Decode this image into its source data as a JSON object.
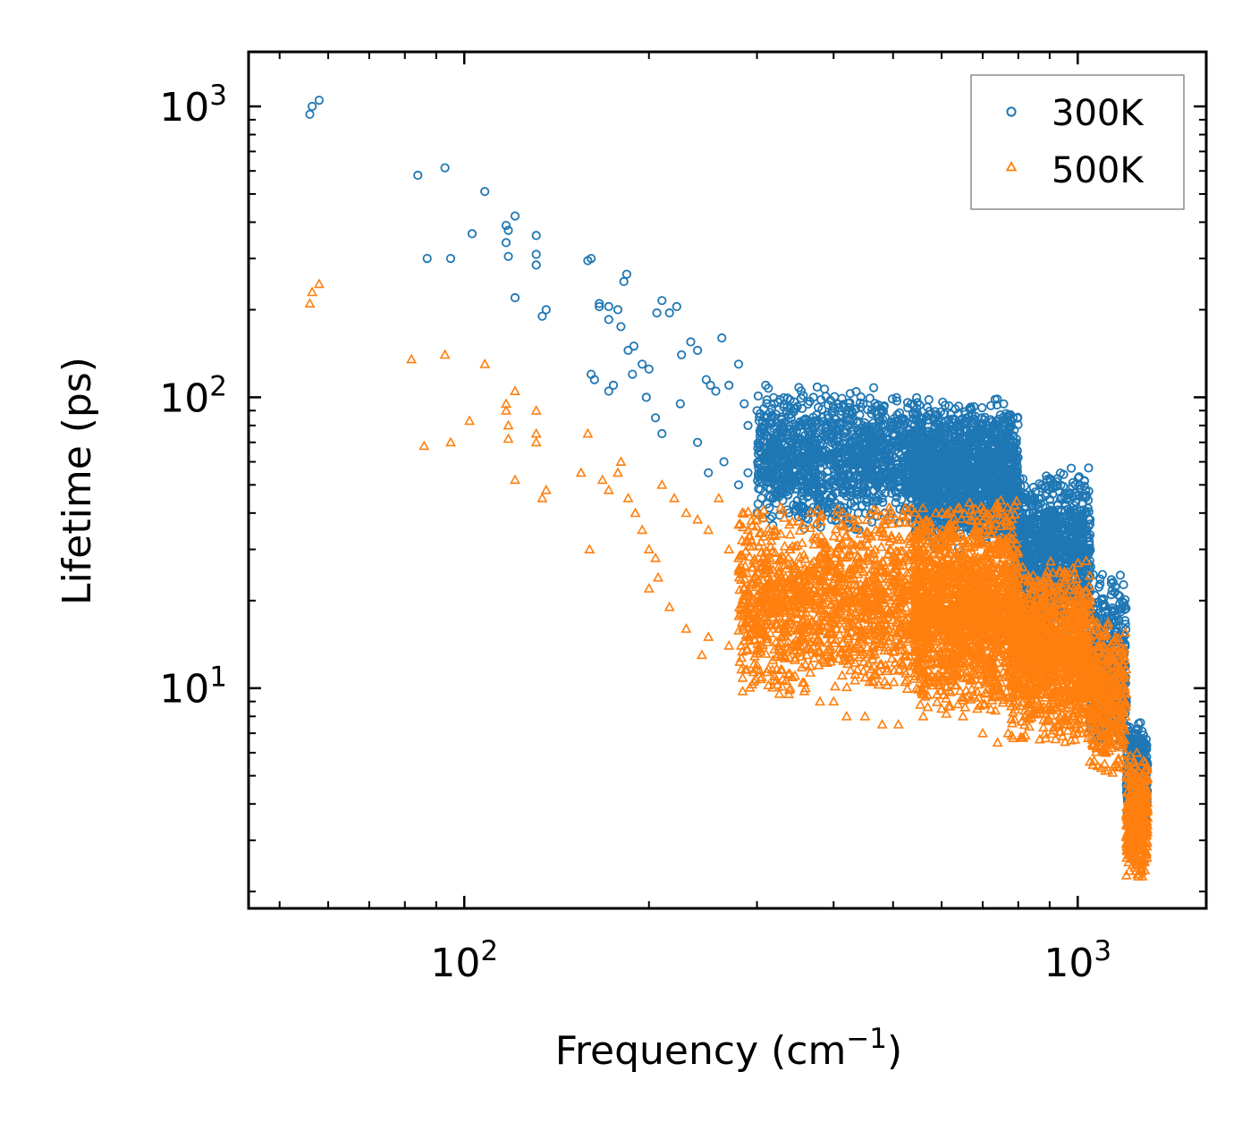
{
  "chart_data": {
    "type": "scatter",
    "xscale": "log",
    "yscale": "log",
    "xlim": [
      44.5,
      1620
    ],
    "ylim": [
      1.75,
      1540
    ],
    "xlabel": {
      "main": "Frequency (cm",
      "sup": "−1",
      "close": ")"
    },
    "ylabel": "Lifetime (ps)",
    "x_ticks": [
      {
        "value": 100,
        "base": "10",
        "exp": "2"
      },
      {
        "value": 1000,
        "base": "10",
        "exp": "3"
      }
    ],
    "y_ticks": [
      {
        "value": 10,
        "base": "10",
        "exp": "1"
      },
      {
        "value": 100,
        "base": "10",
        "exp": "2"
      },
      {
        "value": 1000,
        "base": "10",
        "exp": "3"
      }
    ],
    "legend": {
      "position": "top-right"
    },
    "series": [
      {
        "name": "300K",
        "marker": "circle",
        "color": "#1f77b4",
        "points": [
          [
            56,
            940
          ],
          [
            56.5,
            1000
          ],
          [
            58,
            1050
          ],
          [
            84,
            580
          ],
          [
            93,
            615
          ],
          [
            87,
            300
          ],
          [
            95,
            300
          ],
          [
            103,
            365
          ],
          [
            108,
            510
          ],
          [
            117,
            340
          ],
          [
            117,
            390
          ],
          [
            118,
            375
          ],
          [
            118,
            305
          ],
          [
            121,
            420
          ],
          [
            121,
            220
          ],
          [
            131,
            360
          ],
          [
            131,
            310
          ],
          [
            131,
            285
          ],
          [
            134,
            190
          ],
          [
            136,
            200
          ],
          [
            159,
            295
          ],
          [
            161,
            300
          ],
          [
            166,
            210
          ],
          [
            166,
            205
          ],
          [
            172,
            185
          ],
          [
            172,
            205
          ],
          [
            180,
            175
          ],
          [
            178,
            200
          ],
          [
            185,
            145
          ],
          [
            182,
            250
          ],
          [
            184,
            265
          ],
          [
            189,
            150
          ],
          [
            195,
            130
          ],
          [
            200,
            125
          ],
          [
            206,
            195
          ],
          [
            210,
            215
          ],
          [
            216,
            195
          ],
          [
            222,
            205
          ],
          [
            226,
            140
          ],
          [
            234,
            155
          ],
          [
            240,
            145
          ],
          [
            248,
            115
          ],
          [
            252,
            110
          ],
          [
            257,
            105
          ],
          [
            263,
            160
          ],
          [
            270,
            110
          ],
          [
            280,
            130
          ],
          [
            286,
            95
          ],
          [
            290,
            80
          ],
          [
            300,
            90
          ],
          [
            310,
            110
          ],
          [
            320,
            95
          ],
          [
            330,
            80
          ],
          [
            340,
            70
          ],
          [
            350,
            60
          ],
          [
            161,
            120
          ],
          [
            163,
            115
          ],
          [
            172,
            105
          ],
          [
            175,
            110
          ],
          [
            188,
            120
          ],
          [
            198,
            100
          ],
          [
            205,
            85
          ],
          [
            210,
            75
          ],
          [
            225,
            95
          ],
          [
            240,
            70
          ],
          [
            250,
            55
          ],
          [
            265,
            60
          ],
          [
            280,
            50
          ],
          [
            290,
            55
          ],
          [
            305,
            45
          ],
          [
            320,
            50
          ],
          [
            340,
            48
          ],
          [
            360,
            40
          ],
          [
            380,
            45
          ],
          [
            400,
            42
          ],
          [
            420,
            38
          ],
          [
            440,
            35
          ],
          [
            460,
            40
          ],
          [
            480,
            45
          ],
          [
            500,
            55
          ]
        ],
        "bands": [
          {
            "x0": 300,
            "x1": 560,
            "ymin": 35,
            "ymax": 110,
            "n": 1300
          },
          {
            "x0": 540,
            "x1": 800,
            "ymin": 30,
            "ymax": 100,
            "n": 1500
          },
          {
            "x0": 780,
            "x1": 1050,
            "ymin": 15,
            "ymax": 58,
            "n": 1000
          },
          {
            "x0": 1040,
            "x1": 1200,
            "ymin": 6,
            "ymax": 26,
            "n": 400
          },
          {
            "x0": 1200,
            "x1": 1300,
            "ymin": 3.2,
            "ymax": 8,
            "n": 350
          }
        ]
      },
      {
        "name": "500K",
        "marker": "triangle",
        "color": "#ff7f0e",
        "points": [
          [
            56,
            210
          ],
          [
            56.5,
            230
          ],
          [
            58,
            245
          ],
          [
            82,
            135
          ],
          [
            93,
            140
          ],
          [
            86,
            68
          ],
          [
            95,
            70
          ],
          [
            102,
            83
          ],
          [
            108,
            130
          ],
          [
            117,
            90
          ],
          [
            117,
            95
          ],
          [
            118,
            80
          ],
          [
            118,
            72
          ],
          [
            121,
            105
          ],
          [
            121,
            52
          ],
          [
            131,
            90
          ],
          [
            131,
            75
          ],
          [
            131,
            70
          ],
          [
            134,
            45
          ],
          [
            136,
            48
          ],
          [
            155,
            55
          ],
          [
            159,
            75
          ],
          [
            160,
            30
          ],
          [
            168,
            52
          ],
          [
            172,
            48
          ],
          [
            178,
            55
          ],
          [
            180,
            60
          ],
          [
            185,
            45
          ],
          [
            190,
            40
          ],
          [
            195,
            35
          ],
          [
            200,
            30
          ],
          [
            205,
            28
          ],
          [
            210,
            50
          ],
          [
            220,
            45
          ],
          [
            230,
            40
          ],
          [
            240,
            38
          ],
          [
            250,
            35
          ],
          [
            260,
            45
          ],
          [
            270,
            30
          ],
          [
            280,
            28
          ],
          [
            290,
            35
          ],
          [
            300,
            40
          ],
          [
            320,
            35
          ],
          [
            340,
            30
          ],
          [
            360,
            25
          ],
          [
            200,
            22
          ],
          [
            207,
            24
          ],
          [
            216,
            19
          ],
          [
            230,
            16
          ],
          [
            244,
            13
          ],
          [
            250,
            15
          ],
          [
            270,
            14
          ],
          [
            285,
            16
          ],
          [
            300,
            12
          ],
          [
            320,
            11
          ],
          [
            340,
            10
          ],
          [
            360,
            10
          ],
          [
            380,
            9
          ],
          [
            400,
            9
          ],
          [
            420,
            8
          ],
          [
            450,
            8
          ],
          [
            480,
            7.5
          ],
          [
            510,
            7.5
          ],
          [
            560,
            8
          ],
          [
            600,
            8.5
          ],
          [
            650,
            8
          ],
          [
            700,
            7
          ],
          [
            740,
            6.5
          ],
          [
            770,
            7
          ],
          [
            820,
            8
          ],
          [
            870,
            8.5
          ],
          [
            900,
            8.5
          ],
          [
            950,
            7.5
          ],
          [
            1000,
            7.5
          ],
          [
            1020,
            7
          ]
        ],
        "bands": [
          {
            "x0": 280,
            "x1": 560,
            "ymin": 9,
            "ymax": 45,
            "n": 1400
          },
          {
            "x0": 540,
            "x1": 800,
            "ymin": 8,
            "ymax": 45,
            "n": 1700
          },
          {
            "x0": 780,
            "x1": 1050,
            "ymin": 6.5,
            "ymax": 28,
            "n": 1200
          },
          {
            "x0": 1040,
            "x1": 1200,
            "ymin": 5,
            "ymax": 18,
            "n": 400
          },
          {
            "x0": 1200,
            "x1": 1300,
            "ymin": 2.1,
            "ymax": 6,
            "n": 400
          }
        ]
      }
    ]
  }
}
